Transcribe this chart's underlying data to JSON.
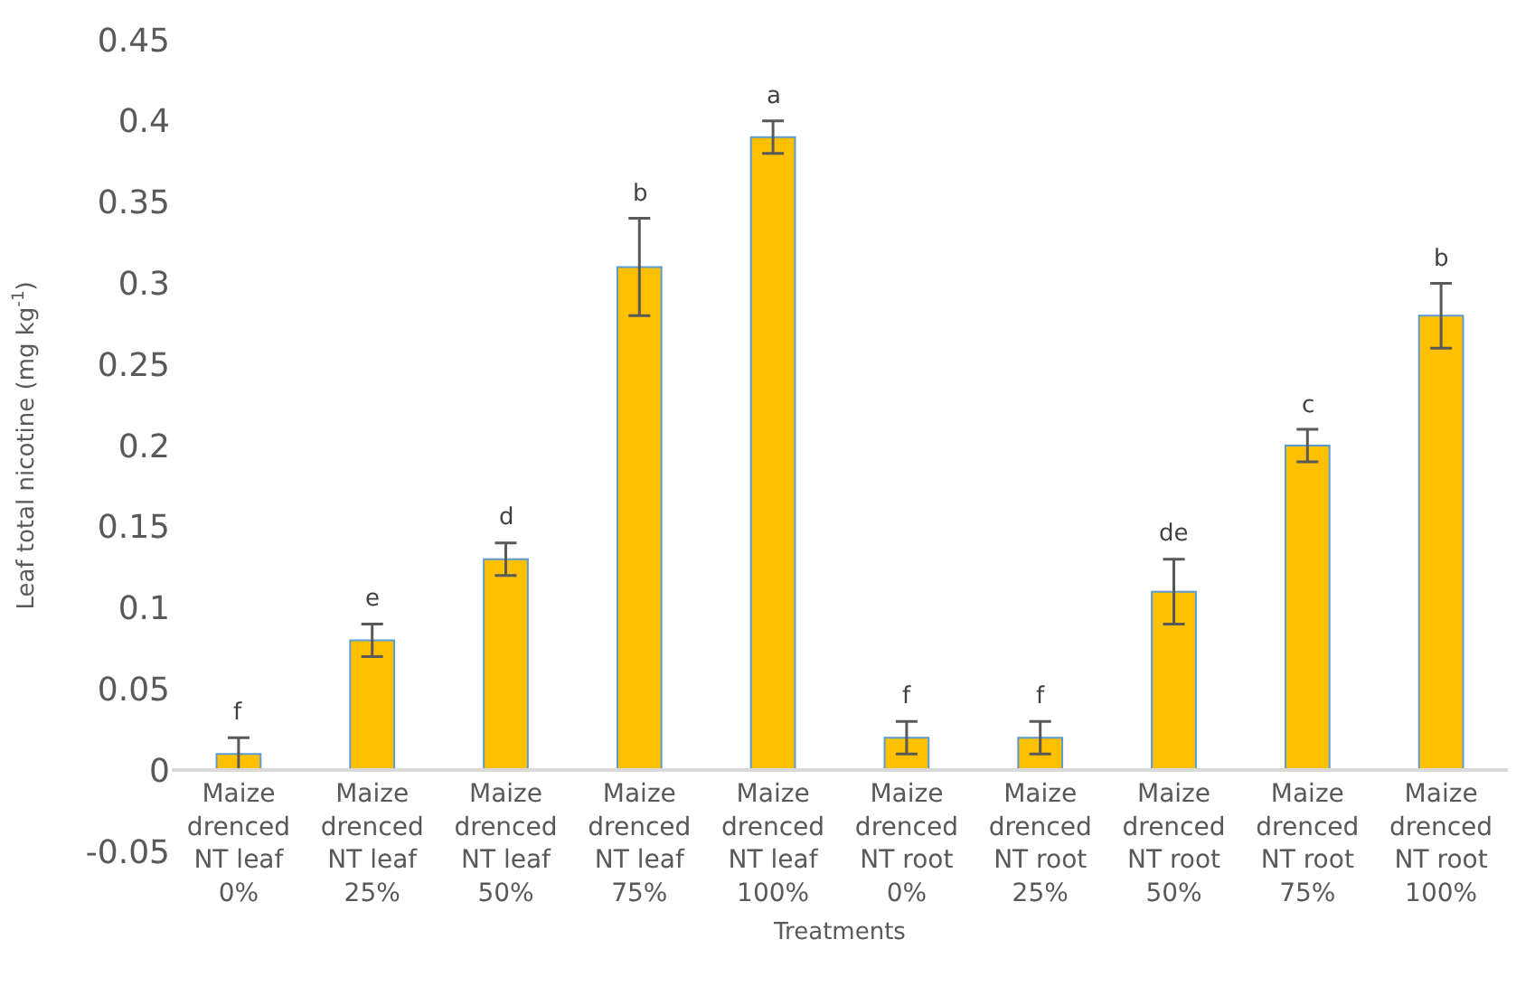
{
  "chart_data": {
    "type": "bar",
    "xlabel": "Treatments",
    "ylabel": "Leaf total nicotine (mg kg$^{-1}$)",
    "categories": [
      "Maize drenced NT leaf 0%",
      "Maize drenced NT leaf 25%",
      "Maize drenced NT leaf 50%",
      "Maize drenced NT leaf 75%",
      "Maize drenced NT leaf 100%",
      "Maize drenced NT root 0%",
      "Maize drenced NT root 25%",
      "Maize drenced NT root 50%",
      "Maize drenced NT root 75%",
      "Maize drenced NT root 100%"
    ],
    "values": [
      0.01,
      0.08,
      0.13,
      0.31,
      0.39,
      0.02,
      0.02,
      0.11,
      0.2,
      0.28
    ],
    "errors": [
      0.01,
      0.01,
      0.01,
      0.03,
      0.01,
      0.01,
      0.01,
      0.02,
      0.01,
      0.02
    ],
    "value_labels": [
      "f",
      "e",
      "d",
      "b",
      "a",
      "f",
      "f",
      "de",
      "c",
      "b"
    ],
    "color": "#ffc000",
    "ylim": [
      -0.05,
      0.45
    ],
    "yticks": [
      -0.05,
      0,
      0.05,
      0.1,
      0.15,
      0.2,
      0.25,
      0.3,
      0.35,
      0.4,
      0.45
    ],
    "legend": false
  }
}
